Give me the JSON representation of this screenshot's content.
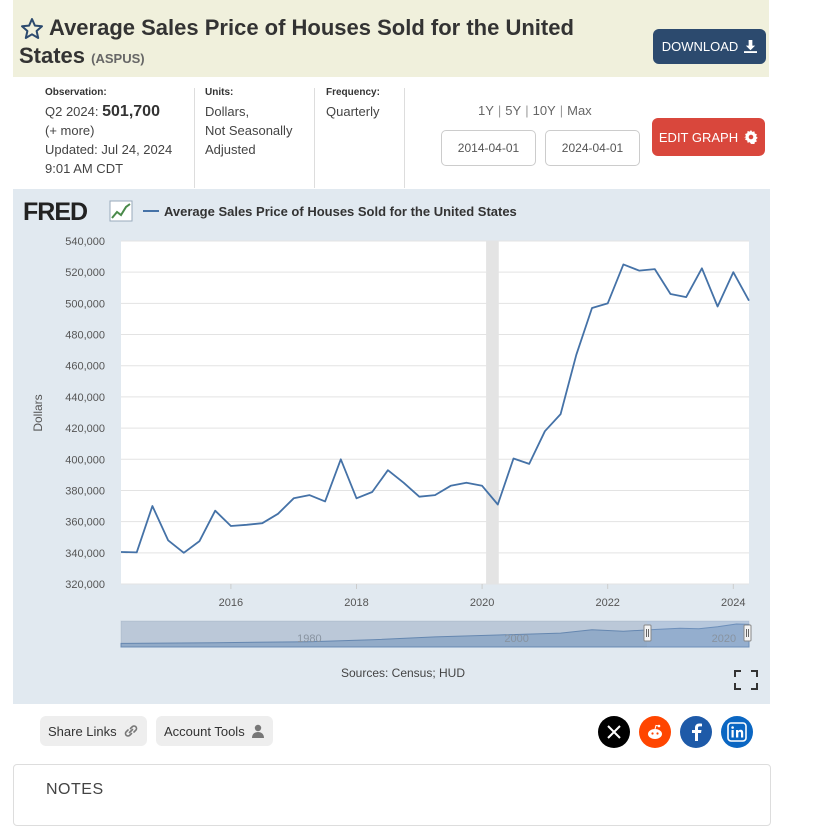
{
  "header": {
    "title": "Average Sales Price of Houses Sold for the United States",
    "series_code": "(ASPUS)",
    "download_label": "DOWNLOAD"
  },
  "info": {
    "observation_label": "Observation:",
    "observation_period": "Q2 2024:",
    "observation_value": "501,700",
    "more": "(+ more)",
    "updated": "Updated: Jul 24, 2024",
    "updated_time": "9:01 AM CDT",
    "units_label": "Units:",
    "units_lines": [
      "Dollars,",
      "Not Seasonally",
      "Adjusted"
    ],
    "frequency_label": "Frequency:",
    "frequency_value": "Quarterly"
  },
  "controls": {
    "ranges": [
      "1Y",
      "5Y",
      "10Y",
      "Max"
    ],
    "start_date": "2014-04-01",
    "end_date": "2024-04-01",
    "edit_label": "EDIT GRAPH"
  },
  "chart_data": {
    "type": "line",
    "title": "Average Sales Price of Houses Sold for the United States",
    "legend": "Average Sales Price of Houses Sold for the United States",
    "logo_text": "FRED",
    "ylabel": "Dollars",
    "ylim": [
      320000,
      540000
    ],
    "yticks": [
      320000,
      340000,
      360000,
      380000,
      400000,
      420000,
      440000,
      460000,
      480000,
      500000,
      520000,
      540000
    ],
    "ytick_labels": [
      "320,000",
      "340,000",
      "360,000",
      "380,000",
      "400,000",
      "420,000",
      "440,000",
      "460,000",
      "480,000",
      "500,000",
      "520,000",
      "540,000"
    ],
    "xlim": [
      2014.25,
      2024.25
    ],
    "xticks": [
      2016,
      2018,
      2020,
      2022,
      2024
    ],
    "xtick_labels": [
      "2016",
      "2018",
      "2020",
      "2022",
      "2024"
    ],
    "recession": [
      2020.0,
      2020.25
    ],
    "series": [
      {
        "color": "#4572a7",
        "x": [
          2014.25,
          2014.5,
          2014.75,
          2015.0,
          2015.25,
          2015.5,
          2015.75,
          2016.0,
          2016.25,
          2016.5,
          2016.75,
          2017.0,
          2017.25,
          2017.5,
          2017.75,
          2018.0,
          2018.25,
          2018.5,
          2018.75,
          2019.0,
          2019.25,
          2019.5,
          2019.75,
          2020.0,
          2020.25,
          2020.5,
          2020.75,
          2021.0,
          2021.25,
          2021.5,
          2021.75,
          2022.0,
          2022.25,
          2022.5,
          2022.75,
          2023.0,
          2023.25,
          2023.5,
          2023.75,
          2024.0,
          2024.25
        ],
        "y": [
          340500,
          340300,
          370000,
          348000,
          340000,
          347500,
          367000,
          357200,
          358000,
          359000,
          365000,
          375000,
          377000,
          373000,
          400000,
          375000,
          379000,
          393000,
          385000,
          376000,
          377000,
          383000,
          385000,
          383000,
          371000,
          400500,
          397000,
          418000,
          429000,
          467000,
          497000,
          500000,
          525000,
          521000,
          522000,
          506000,
          504000,
          522500,
          498000,
          520000,
          501700
        ]
      }
    ],
    "navigator_labels": [
      "1980",
      "2000",
      "2020"
    ],
    "source": "Sources: Census; HUD"
  },
  "footer": {
    "share_label": "Share Links",
    "account_label": "Account Tools",
    "social": [
      "X",
      "reddit",
      "facebook",
      "linkedin"
    ],
    "notes_label": "NOTES"
  }
}
